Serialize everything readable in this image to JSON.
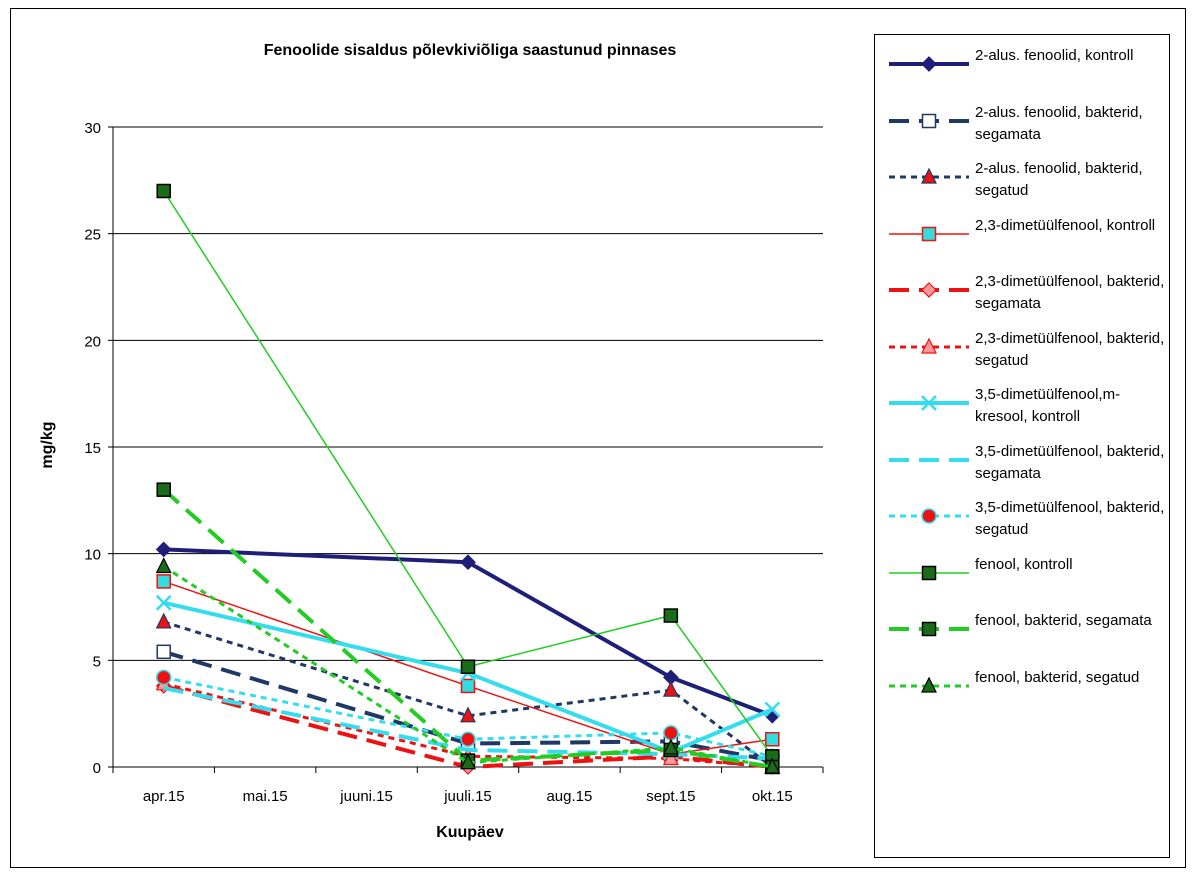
{
  "chart_data": {
    "type": "line",
    "title": "Fenoolide sisaldus põlevkiviõliga saastunud pinnases",
    "xlabel": "Kuupäev",
    "ylabel": "mg/kg",
    "categories": [
      "apr.15",
      "mai.15",
      "juuni.15",
      "juuli.15",
      "aug.15",
      "sept.15",
      "okt.15"
    ],
    "ylim": [
      0,
      30
    ],
    "yticks": [
      "0",
      "5",
      "10",
      "15",
      "20",
      "25",
      "30"
    ],
    "grid": "horizontal",
    "legend_position": "right",
    "series": [
      {
        "name": "2-alus. fenoolid, kontroll",
        "values": [
          10.2,
          null,
          null,
          9.6,
          null,
          4.2,
          2.4
        ],
        "color": "#1f1f7a",
        "width": 4,
        "dash": "",
        "marker": "diamond",
        "marker_fill": "#1f1f7a",
        "marker_stroke": "#1f1f7a"
      },
      {
        "name": "2-alus. fenoolid, bakterid, segamata",
        "values": [
          5.4,
          null,
          null,
          1.1,
          null,
          1.2,
          0.3
        ],
        "color": "#1f3864",
        "width": 4,
        "dash": "20,10",
        "marker": "square",
        "marker_fill": "#ffffff",
        "marker_stroke": "#1f3864"
      },
      {
        "name": "2-alus. fenoolid, bakterid, segatud",
        "values": [
          6.8,
          null,
          null,
          2.4,
          null,
          3.6,
          0.0
        ],
        "color": "#1f3864",
        "width": 3,
        "dash": "6,5",
        "marker": "triangle",
        "marker_fill": "#ee1111",
        "marker_stroke": "#1f3864"
      },
      {
        "name": "2,3-dimetüülfenool, kontroll",
        "values": [
          8.7,
          null,
          null,
          3.8,
          null,
          0.6,
          1.3
        ],
        "color": "#ee1111",
        "width": 1.5,
        "dash": "",
        "marker": "square",
        "marker_fill": "#33dddd",
        "marker_stroke": "#ee1111"
      },
      {
        "name": "2,3-dimetüülfenool, bakterid, segamata",
        "values": [
          3.8,
          null,
          null,
          0.0,
          null,
          0.5,
          0.0
        ],
        "color": "#ee1111",
        "width": 4,
        "dash": "20,10",
        "marker": "diamond",
        "marker_fill": "#ff9999",
        "marker_stroke": "#ee1111"
      },
      {
        "name": "2,3-dimetüülfenool, bakterid, segatud",
        "values": [
          3.9,
          null,
          null,
          0.5,
          null,
          0.4,
          0.0
        ],
        "color": "#ee1111",
        "width": 3,
        "dash": "6,5",
        "marker": "triangle",
        "marker_fill": "#ff9999",
        "marker_stroke": "#ee1111"
      },
      {
        "name": "3,5-dimetüülfenool,m-kresool, kontroll",
        "values": [
          7.7,
          null,
          null,
          4.4,
          null,
          0.7,
          2.7
        ],
        "color": "#33ddee",
        "width": 4,
        "dash": "",
        "marker": "x",
        "marker_fill": "none",
        "marker_stroke": "#33ddee"
      },
      {
        "name": "3,5-dimetüülfenool, bakterid, segamata",
        "values": [
          3.7,
          null,
          null,
          0.8,
          null,
          0.6,
          0.4
        ],
        "color": "#33ddee",
        "width": 4,
        "dash": "20,10",
        "marker": "none",
        "marker_fill": "none",
        "marker_stroke": "#33ddee"
      },
      {
        "name": "3,5-dimetüülfenool, bakterid, segatud",
        "values": [
          4.2,
          null,
          null,
          1.3,
          null,
          1.6,
          0.5
        ],
        "color": "#33ddee",
        "width": 3,
        "dash": "6,5",
        "marker": "circle",
        "marker_fill": "#ee1111",
        "marker_stroke": "#33ddee"
      },
      {
        "name": "fenool, kontroll",
        "values": [
          27.0,
          null,
          null,
          4.7,
          null,
          7.1,
          0.5
        ],
        "color": "#22cc22",
        "width": 1.5,
        "dash": "",
        "marker": "square",
        "marker_fill": "#1a6b1a",
        "marker_stroke": "#000000"
      },
      {
        "name": "fenool, bakterid, segamata",
        "values": [
          13.0,
          null,
          null,
          0.3,
          null,
          0.8,
          0.0
        ],
        "color": "#22cc22",
        "width": 4,
        "dash": "20,10",
        "marker": "square",
        "marker_fill": "#1a6b1a",
        "marker_stroke": "#000000"
      },
      {
        "name": "fenool, bakterid, segatud",
        "values": [
          9.4,
          null,
          null,
          0.2,
          null,
          0.9,
          0.0
        ],
        "color": "#22cc22",
        "width": 3,
        "dash": "6,5",
        "marker": "triangle",
        "marker_fill": "#1a6b1a",
        "marker_stroke": "#000000"
      }
    ]
  }
}
